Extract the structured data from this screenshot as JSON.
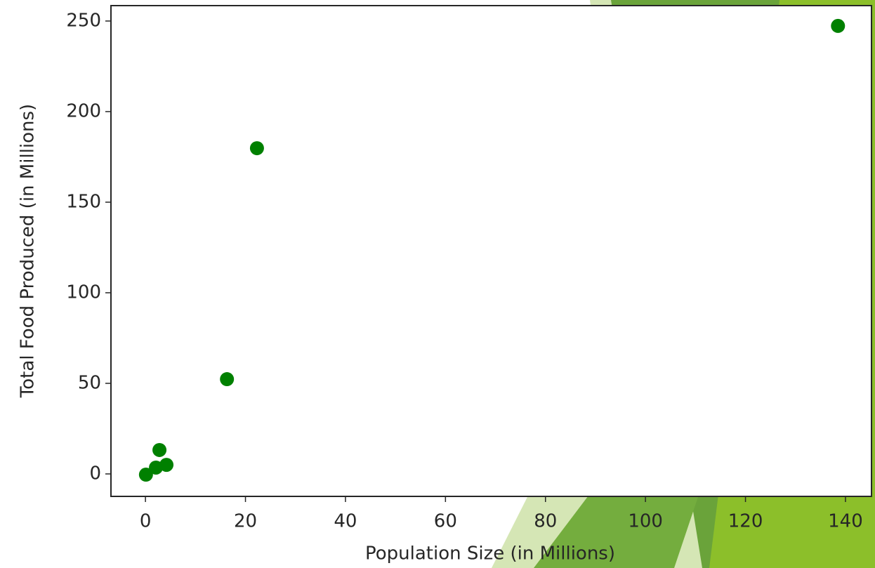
{
  "chart_data": {
    "type": "scatter",
    "x_label": "Population Size (in Millions)",
    "y_label": "Total Food Produced (in Millions)",
    "series": [
      {
        "color": "#008000",
        "x": [
          138.5,
          22.3,
          16.3,
          2.8,
          0.1,
          2.1,
          4.2
        ],
        "values": [
          247.3,
          179.8,
          52.3,
          13.2,
          -0.4,
          3.5,
          5
        ]
      }
    ],
    "xlim": [
      -6.9,
      145.2
    ],
    "xticks": [
      0,
      20,
      40,
      60,
      80,
      100,
      120,
      140
    ],
    "ylim": [
      -12.4,
      258.5
    ],
    "yticks": [
      0,
      50,
      100,
      150,
      200,
      250
    ]
  }
}
